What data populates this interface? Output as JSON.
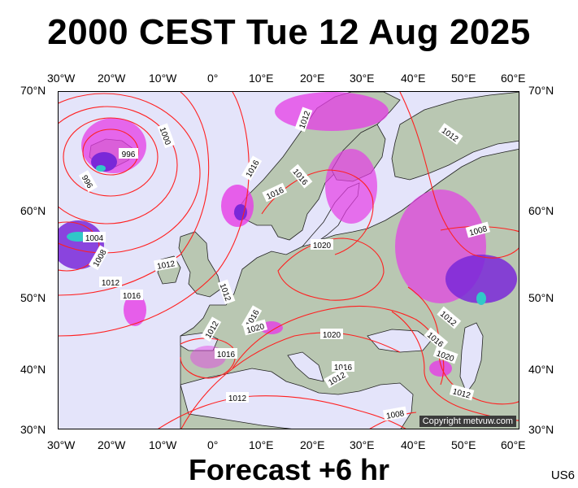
{
  "title": "2000 CEST Tue 12 Aug 2025",
  "subtitle": "Forecast +6 hr",
  "model_code": "US6",
  "copyright": "Copyright metvuw.com",
  "axes": {
    "top_lon": [
      "30°W",
      "20°W",
      "10°W",
      "0°",
      "10°E",
      "20°E",
      "30°E",
      "40°E",
      "50°E",
      "60°E"
    ],
    "bottom_lon": [
      "30°W",
      "20°W",
      "10°W",
      "0°",
      "10°E",
      "20°E",
      "30°E",
      "40°E",
      "50°E",
      "60°E"
    ],
    "left_lat": [
      "70°N",
      "60°N",
      "50°N",
      "40°N",
      "30°N"
    ],
    "right_lat": [
      "70°N",
      "60°N",
      "50°N",
      "40°N",
      "30°N"
    ]
  },
  "colors": {
    "isobar": "#ff2020",
    "land": "#b9c7b2",
    "sea": "#e4e4fa",
    "precip_light": "#e63ce6",
    "precip_heavy": "#7a28d8",
    "precip_peak": "#30c8c8"
  },
  "isobar_labels": [
    {
      "text": "996"
    },
    {
      "text": "1000"
    },
    {
      "text": "996"
    },
    {
      "text": "1004"
    },
    {
      "text": "1008"
    },
    {
      "text": "1012"
    },
    {
      "text": "1012"
    },
    {
      "text": "1012"
    },
    {
      "text": "1016"
    },
    {
      "text": "1016"
    },
    {
      "text": "1016"
    },
    {
      "text": "1012"
    },
    {
      "text": "1020"
    },
    {
      "text": "1016"
    },
    {
      "text": "1020"
    },
    {
      "text": "1020"
    },
    {
      "text": "1016"
    },
    {
      "text": "1012"
    },
    {
      "text": "1016"
    },
    {
      "text": "1012"
    },
    {
      "text": "1012"
    },
    {
      "text": "1016"
    },
    {
      "text": "1012"
    },
    {
      "text": "1008"
    },
    {
      "text": "1012"
    },
    {
      "text": "1008"
    },
    {
      "text": "1012"
    },
    {
      "text": "1020"
    },
    {
      "text": "1016"
    }
  ]
}
